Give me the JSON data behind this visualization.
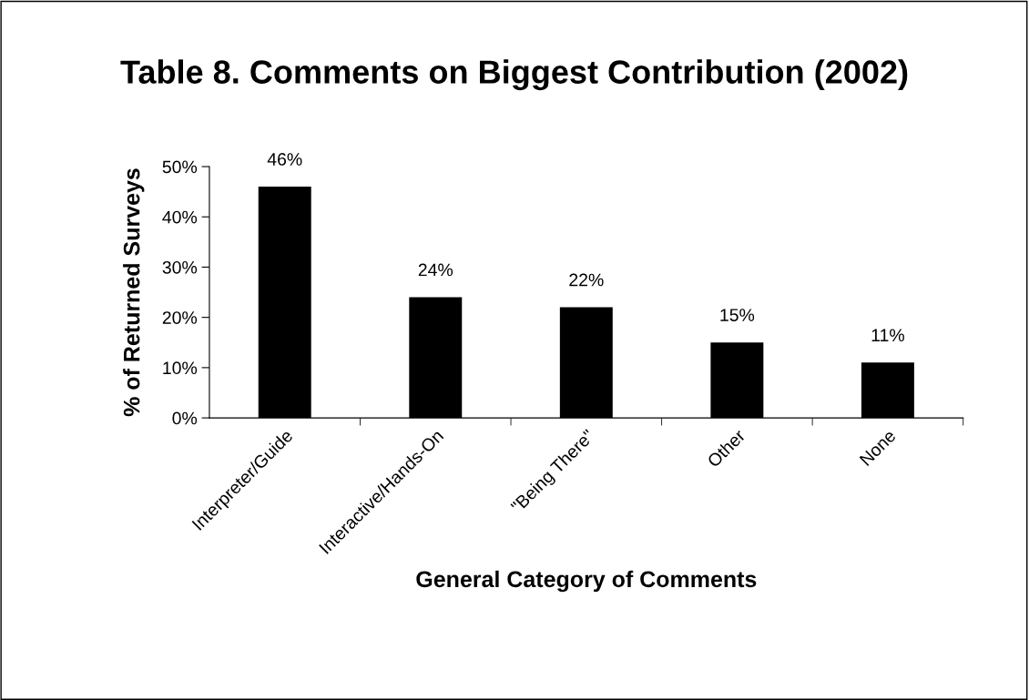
{
  "chart_data": {
    "type": "bar",
    "title": "Table 8. Comments on Biggest Contribution (2002)",
    "xlabel": "General Category of Comments",
    "ylabel": "% of Returned Surveys",
    "categories": [
      "Interpreter/Guide",
      "Interactive/Hands-On",
      "\"Being There\"",
      "Other",
      "None"
    ],
    "values": [
      46,
      24,
      22,
      15,
      11
    ],
    "value_labels": [
      "46%",
      "24%",
      "22%",
      "15%",
      "11%"
    ],
    "color": "#000000",
    "ylim": [
      0,
      50
    ],
    "yticks": [
      {
        "value": 0,
        "label": "0%"
      },
      {
        "value": 10,
        "label": "10%"
      },
      {
        "value": 20,
        "label": "20%"
      },
      {
        "value": 30,
        "label": "30%"
      },
      {
        "value": 40,
        "label": "40%"
      },
      {
        "value": 50,
        "label": "50%"
      }
    ],
    "grid": false,
    "legend": false
  }
}
